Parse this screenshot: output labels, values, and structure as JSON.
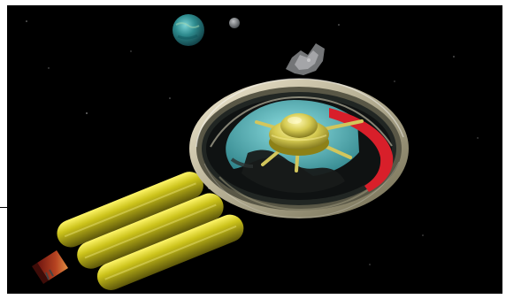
{
  "image": {
    "kind": "3D render of a space station with ring habitat and cylindrical tanks",
    "colors": {
      "space": "#000000",
      "ring": "#c9c0a0",
      "water": "#58b4b7",
      "accent": "#d81f2a",
      "tanks": "#c9c31c",
      "hub": "#d9d06a",
      "planet": "#2d8a8d"
    }
  },
  "elements": {
    "planet_large": "planet",
    "planet_small": "moon",
    "asteroid": "asteroid",
    "station": "space-station"
  }
}
